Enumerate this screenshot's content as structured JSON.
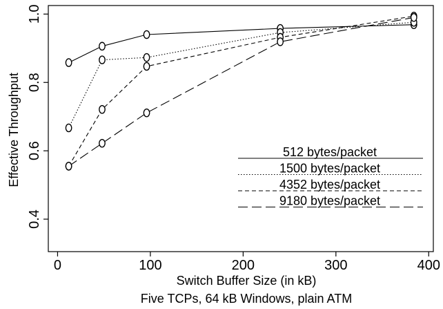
{
  "chart_data": {
    "type": "line",
    "title": "",
    "caption": "Five TCPs, 64 kB Windows, plain ATM",
    "xlabel": "Switch Buffer Size (in kB)",
    "ylabel": "Effective Throughput",
    "xlim": [
      -10,
      405
    ],
    "ylim": [
      0.305,
      1.025
    ],
    "xticks": [
      0,
      100,
      200,
      300,
      400
    ],
    "yticks": [
      0.4,
      0.6,
      0.8,
      1.0
    ],
    "xtick_labels": [
      "0",
      "100",
      "200",
      "300",
      "400"
    ],
    "ytick_labels": [
      "0.4",
      "0.6",
      "0.8",
      "1.0"
    ],
    "grid": false,
    "legend_position": "inside, lower-right",
    "marker": "o",
    "color": "#000000",
    "series": [
      {
        "name": "512 bytes/packet",
        "style": "solid",
        "x": [
          12,
          48,
          96,
          240,
          384
        ],
        "y": [
          0.858,
          0.906,
          0.94,
          0.958,
          0.969
        ]
      },
      {
        "name": "1500 bytes/packet",
        "style": "dotted",
        "x": [
          12,
          48,
          96,
          240,
          384
        ],
        "y": [
          0.667,
          0.866,
          0.873,
          0.946,
          0.976
        ]
      },
      {
        "name": "4352 bytes/packet",
        "style": "dashed",
        "x": [
          12,
          48,
          96,
          240,
          384
        ],
        "y": [
          0.555,
          0.721,
          0.847,
          0.932,
          0.994
        ]
      },
      {
        "name": "9180 bytes/packet",
        "style": "longdash",
        "x": [
          12,
          48,
          96,
          240,
          384
        ],
        "y": [
          0.555,
          0.622,
          0.711,
          0.919,
          0.99
        ]
      }
    ]
  }
}
